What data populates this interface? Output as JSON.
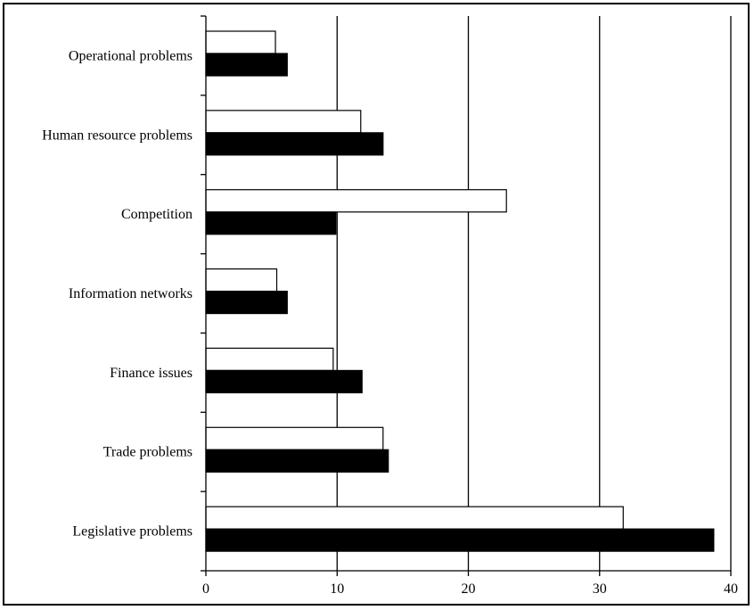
{
  "chart_data": {
    "type": "bar",
    "orientation": "horizontal",
    "categories": [
      "Operational problems",
      "Human resource problems",
      "Competition",
      "Information networks",
      "Finance issues",
      "Trade problems",
      "Legislative problems"
    ],
    "series": [
      {
        "values": [
          5.3,
          11.8,
          22.9,
          5.4,
          9.7,
          13.5,
          31.8
        ],
        "color": "#ffffff"
      },
      {
        "values": [
          6.2,
          13.5,
          9.9,
          6.2,
          11.9,
          13.9,
          38.7
        ],
        "color": "#000000"
      }
    ],
    "xlim": [
      0,
      40
    ],
    "xticks": [
      "0",
      "10",
      "20",
      "30",
      "40"
    ],
    "title": "",
    "xlabel": "",
    "ylabel": "",
    "grid": "vertical",
    "legend": "none"
  }
}
